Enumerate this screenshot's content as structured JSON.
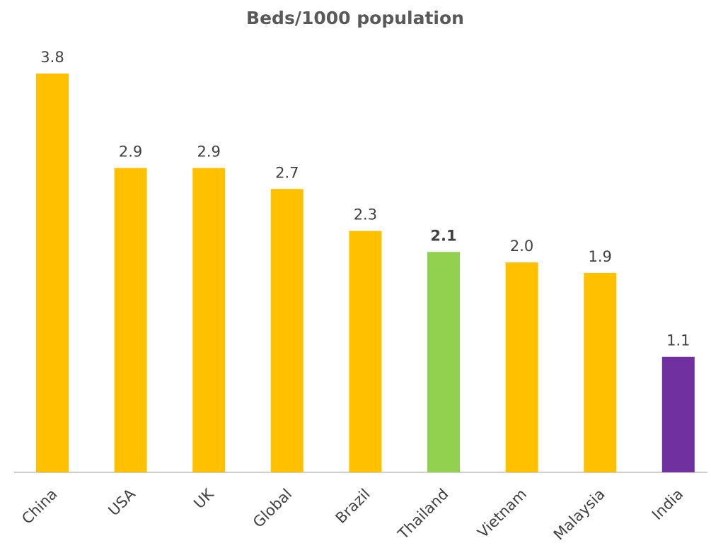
{
  "chart_data": {
    "type": "bar",
    "title": "Beds/1000 population",
    "categories": [
      "China",
      "USA",
      "UK",
      "Global",
      "Brazil",
      "Thailand",
      "Vietnam",
      "Malaysia",
      "India"
    ],
    "values": [
      3.8,
      2.9,
      2.9,
      2.7,
      2.3,
      2.1,
      2.0,
      1.9,
      1.1
    ],
    "value_labels": [
      "3.8",
      "2.9",
      "2.9",
      "2.7",
      "2.3",
      "2.1",
      "2.0",
      "1.9",
      "1.1"
    ],
    "value_label_bold": [
      false,
      false,
      false,
      false,
      false,
      true,
      false,
      false,
      false
    ],
    "colors": [
      "#ffc000",
      "#ffc000",
      "#ffc000",
      "#ffc000",
      "#ffc000",
      "#92d050",
      "#ffc000",
      "#ffc000",
      "#7030a0"
    ]
  }
}
